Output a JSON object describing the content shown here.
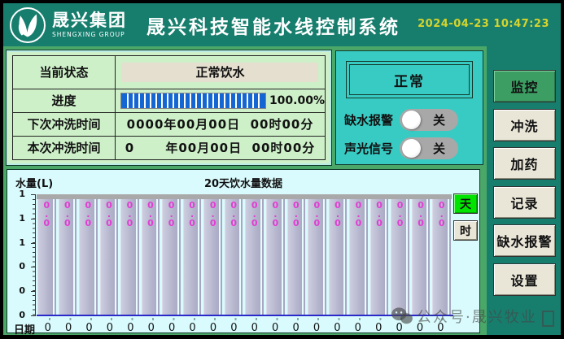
{
  "header": {
    "logo_title": "晟兴集团",
    "logo_subtitle": "SHENGXING GROUP",
    "title": "晟兴科技智能水线控制系统",
    "datetime": "2024-04-23 10:47:23"
  },
  "status_panel": {
    "rows": [
      {
        "label": "当前状态",
        "value": "正常饮水"
      },
      {
        "label": "进度",
        "value": "100.00%"
      },
      {
        "label": "下次冲洗时间",
        "value": "0000年00月00日  00时00分"
      },
      {
        "label": "本次冲洗时间",
        "value": "0　　 年00月00日  00时00分"
      }
    ],
    "progress_percent": 100
  },
  "alarm_panel": {
    "status": "正常",
    "toggles": [
      {
        "label": "缺水报警",
        "state": "关"
      },
      {
        "label": "声光信号",
        "state": "关"
      }
    ]
  },
  "sidebar": {
    "buttons": [
      {
        "label": "监控",
        "active": true
      },
      {
        "label": "冲洗",
        "active": false
      },
      {
        "label": "加药",
        "active": false
      },
      {
        "label": "记录",
        "active": false
      },
      {
        "label": "缺水报警",
        "active": false
      },
      {
        "label": "设置",
        "active": false
      }
    ]
  },
  "chart": {
    "ylabel": "水量(L)",
    "title": "20天饮水量数据",
    "xlabel": "日期",
    "unit_buttons": [
      {
        "label": "天",
        "active": true
      },
      {
        "label": "时",
        "active": false
      }
    ]
  },
  "chart_data": {
    "type": "bar",
    "title": "20天饮水量数据",
    "xlabel": "日期",
    "ylabel": "水量(L)",
    "categories": [
      "0",
      "0",
      "0",
      "0",
      "0",
      "0",
      "0",
      "0",
      "0",
      "0",
      "0",
      "0",
      "0",
      "0",
      "0",
      "0",
      "0",
      "0",
      "0",
      "0"
    ],
    "values": [
      0,
      0,
      0,
      0,
      0,
      0,
      0,
      0,
      0,
      0,
      0,
      0,
      0,
      0,
      0,
      0,
      0,
      0,
      0,
      0
    ],
    "bar_labels": [
      "0.0",
      "0.0",
      "0.0",
      "0.0",
      "0.0",
      "0.0",
      "0.0",
      "0.0",
      "0.0",
      "0.0",
      "0.0",
      "0.0",
      "0.0",
      "0.0",
      "0.0",
      "0.0",
      "0.0",
      "0.0",
      "0.0",
      "0.0"
    ],
    "y_tick_labels": [
      "1",
      "1",
      "1",
      "0",
      "0",
      "0"
    ],
    "ylim": [
      0,
      1
    ],
    "grid": false,
    "legend": false
  },
  "watermark": {
    "icon": "wechat-icon",
    "text": "公众号·晟兴牧业"
  },
  "colors": {
    "header_teal": "#177e6e",
    "main_green": "#4aa768",
    "status_panel_green": "#cdf0c8",
    "alarm_panel_turquoise": "#38cbc3",
    "chart_panel_cyan": "#d9fbfd",
    "bar_gray": "#b4b4cd",
    "bar_label_magenta": "#e23cd4",
    "active_button_green": "#3c9e63",
    "button_beige": "#e9e5d7",
    "day_button_green": "#00e400",
    "datetime_yellow": "#d6d42c",
    "progress_blue": "#1467d2",
    "baseline_blue": "#2a2ac8"
  }
}
